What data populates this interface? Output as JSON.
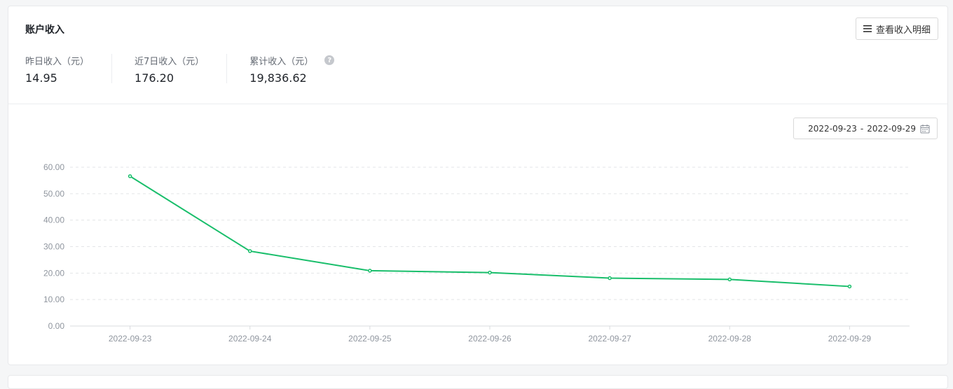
{
  "card": {
    "title": "账户收入",
    "detail_button_label": "查看收入明细"
  },
  "stats": [
    {
      "label": "昨日收入（元）",
      "value": "14.95"
    },
    {
      "label": "近7日收入（元）",
      "value": "176.20"
    },
    {
      "label": "累计收入（元）",
      "value": "19,836.62",
      "has_help": true
    }
  ],
  "date_range": {
    "start": "2022-09-23",
    "separator": "-",
    "end": "2022-09-29"
  },
  "icons": {
    "detail": "menu-list-icon",
    "help": "question-mark-icon",
    "date": "calendar-icon"
  },
  "colors": {
    "line": "#19be6b",
    "grid": "#e3e5e8",
    "axis_text": "#8f959e"
  },
  "chart_data": {
    "type": "line",
    "title": "",
    "xlabel": "",
    "ylabel": "",
    "x": [
      "2022-09-23",
      "2022-09-24",
      "2022-09-25",
      "2022-09-26",
      "2022-09-27",
      "2022-09-28",
      "2022-09-29"
    ],
    "series": [
      {
        "values": [
          56.6,
          28.3,
          20.9,
          20.2,
          18.1,
          17.6,
          14.95
        ]
      }
    ],
    "yticks": [
      "60.00",
      "50.00",
      "40.00",
      "30.00",
      "20.00",
      "10.00",
      "0.00"
    ],
    "ylim": [
      0,
      60
    ],
    "grid": true,
    "legend": "none"
  }
}
